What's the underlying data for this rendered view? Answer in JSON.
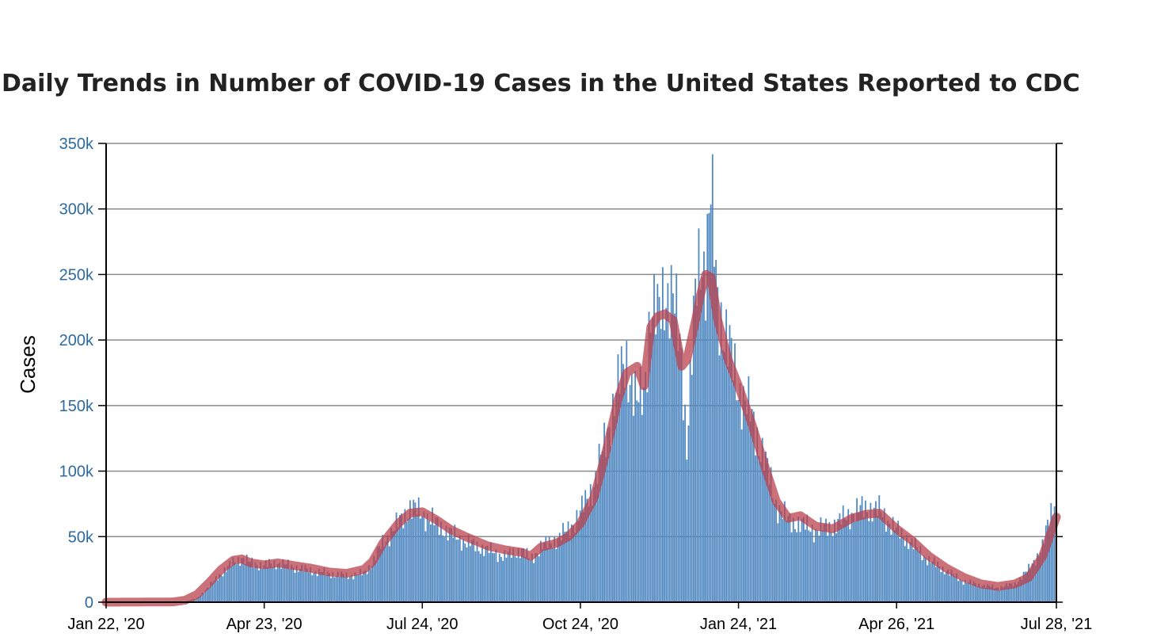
{
  "chart_data": {
    "type": "bar",
    "title": "Daily Trends in Number of COVID-19 Cases in the United States Reported to CDC",
    "xlabel": "",
    "ylabel": "Cases",
    "ylim": [
      0,
      350000
    ],
    "grid": true,
    "x_range": [
      "2020-01-22",
      "2021-07-28"
    ],
    "y_ticks": [
      {
        "value": 0,
        "label": "0"
      },
      {
        "value": 50000,
        "label": "50k"
      },
      {
        "value": 100000,
        "label": "100k"
      },
      {
        "value": 150000,
        "label": "150k"
      },
      {
        "value": 200000,
        "label": "200k"
      },
      {
        "value": 250000,
        "label": "250k"
      },
      {
        "value": 300000,
        "label": "300k"
      },
      {
        "value": 350000,
        "label": "350k"
      }
    ],
    "x_ticks": [
      {
        "date": "2020-01-22",
        "label": "Jan 22, '20"
      },
      {
        "date": "2020-04-23",
        "label": "Apr 23, '20"
      },
      {
        "date": "2020-07-24",
        "label": "Jul 24, '20"
      },
      {
        "date": "2020-10-24",
        "label": "Oct 24, '20"
      },
      {
        "date": "2021-01-24",
        "label": "Jan 24, '21"
      },
      {
        "date": "2021-04-26",
        "label": "Apr 26, '21"
      },
      {
        "date": "2021-07-28",
        "label": "Jul 28, '21"
      }
    ],
    "series": [
      {
        "type": "bar",
        "color": "#4f88c0",
        "points": [
          [
            "2020-01-22",
            0
          ],
          [
            "2020-03-01",
            100
          ],
          [
            "2020-03-08",
            500
          ],
          [
            "2020-03-15",
            3000
          ],
          [
            "2020-03-22",
            12000
          ],
          [
            "2020-03-29",
            22000
          ],
          [
            "2020-04-05",
            30000
          ],
          [
            "2020-04-10",
            34000
          ],
          [
            "2020-04-15",
            30000
          ],
          [
            "2020-04-23",
            28000
          ],
          [
            "2020-05-01",
            30000
          ],
          [
            "2020-05-10",
            27000
          ],
          [
            "2020-05-20",
            24000
          ],
          [
            "2020-05-31",
            22000
          ],
          [
            "2020-06-10",
            20000
          ],
          [
            "2020-06-20",
            22000
          ],
          [
            "2020-06-25",
            30000
          ],
          [
            "2020-07-01",
            45000
          ],
          [
            "2020-07-10",
            60000
          ],
          [
            "2020-07-17",
            72000
          ],
          [
            "2020-07-24",
            68000
          ],
          [
            "2020-08-01",
            60000
          ],
          [
            "2020-08-10",
            52000
          ],
          [
            "2020-08-20",
            45000
          ],
          [
            "2020-08-31",
            40000
          ],
          [
            "2020-09-10",
            35000
          ],
          [
            "2020-09-20",
            40000
          ],
          [
            "2020-09-25",
            32000
          ],
          [
            "2020-10-01",
            42000
          ],
          [
            "2020-10-10",
            48000
          ],
          [
            "2020-10-17",
            55000
          ],
          [
            "2020-10-24",
            68000
          ],
          [
            "2020-11-01",
            90000
          ],
          [
            "2020-11-08",
            125000
          ],
          [
            "2020-11-15",
            165000
          ],
          [
            "2020-11-20",
            185000
          ],
          [
            "2020-11-26",
            150000
          ],
          [
            "2020-11-30",
            160000
          ],
          [
            "2020-12-04",
            225000
          ],
          [
            "2020-12-08",
            215000
          ],
          [
            "2020-12-12",
            240000
          ],
          [
            "2020-12-17",
            230000
          ],
          [
            "2020-12-22",
            190000
          ],
          [
            "2020-12-25",
            120000
          ],
          [
            "2020-12-30",
            230000
          ],
          [
            "2021-01-02",
            270000
          ],
          [
            "2021-01-05",
            255000
          ],
          [
            "2021-01-08",
            310000
          ],
          [
            "2021-01-12",
            230000
          ],
          [
            "2021-01-18",
            195000
          ],
          [
            "2021-01-24",
            165000
          ],
          [
            "2021-02-01",
            140000
          ],
          [
            "2021-02-08",
            110000
          ],
          [
            "2021-02-15",
            75000
          ],
          [
            "2021-02-22",
            62000
          ],
          [
            "2021-03-01",
            60000
          ],
          [
            "2021-03-10",
            55000
          ],
          [
            "2021-03-20",
            58000
          ],
          [
            "2021-03-31",
            68000
          ],
          [
            "2021-04-08",
            72000
          ],
          [
            "2021-04-16",
            70000
          ],
          [
            "2021-04-26",
            55000
          ],
          [
            "2021-05-05",
            45000
          ],
          [
            "2021-05-15",
            32000
          ],
          [
            "2021-05-25",
            24000
          ],
          [
            "2021-06-04",
            16000
          ],
          [
            "2021-06-14",
            13000
          ],
          [
            "2021-06-24",
            11000
          ],
          [
            "2021-07-04",
            14000
          ],
          [
            "2021-07-12",
            25000
          ],
          [
            "2021-07-20",
            42000
          ],
          [
            "2021-07-28",
            85000
          ]
        ]
      },
      {
        "type": "line",
        "color": "#b8424d",
        "points": [
          [
            "2020-01-22",
            0
          ],
          [
            "2020-03-01",
            200
          ],
          [
            "2020-03-08",
            1500
          ],
          [
            "2020-03-15",
            6000
          ],
          [
            "2020-03-22",
            15000
          ],
          [
            "2020-03-29",
            25000
          ],
          [
            "2020-04-05",
            32000
          ],
          [
            "2020-04-10",
            33000
          ],
          [
            "2020-04-15",
            30000
          ],
          [
            "2020-04-23",
            28500
          ],
          [
            "2020-05-01",
            30000
          ],
          [
            "2020-05-10",
            28000
          ],
          [
            "2020-05-20",
            26000
          ],
          [
            "2020-05-31",
            23000
          ],
          [
            "2020-06-10",
            22000
          ],
          [
            "2020-06-20",
            25000
          ],
          [
            "2020-06-25",
            31000
          ],
          [
            "2020-07-01",
            45000
          ],
          [
            "2020-07-10",
            60000
          ],
          [
            "2020-07-17",
            68000
          ],
          [
            "2020-07-24",
            69000
          ],
          [
            "2020-08-01",
            63000
          ],
          [
            "2020-08-10",
            55000
          ],
          [
            "2020-08-20",
            49000
          ],
          [
            "2020-08-31",
            43000
          ],
          [
            "2020-09-10",
            40000
          ],
          [
            "2020-09-20",
            38000
          ],
          [
            "2020-09-25",
            35000
          ],
          [
            "2020-10-01",
            42000
          ],
          [
            "2020-10-10",
            45000
          ],
          [
            "2020-10-17",
            50000
          ],
          [
            "2020-10-24",
            60000
          ],
          [
            "2020-11-01",
            80000
          ],
          [
            "2020-11-08",
            115000
          ],
          [
            "2020-11-15",
            155000
          ],
          [
            "2020-11-20",
            175000
          ],
          [
            "2020-11-26",
            180000
          ],
          [
            "2020-11-30",
            165000
          ],
          [
            "2020-12-04",
            210000
          ],
          [
            "2020-12-08",
            218000
          ],
          [
            "2020-12-12",
            220000
          ],
          [
            "2020-12-17",
            215000
          ],
          [
            "2020-12-22",
            180000
          ],
          [
            "2020-12-25",
            185000
          ],
          [
            "2020-12-30",
            215000
          ],
          [
            "2021-01-02",
            235000
          ],
          [
            "2021-01-05",
            250000
          ],
          [
            "2021-01-08",
            248000
          ],
          [
            "2021-01-12",
            215000
          ],
          [
            "2021-01-18",
            185000
          ],
          [
            "2021-01-24",
            165000
          ],
          [
            "2021-02-01",
            135000
          ],
          [
            "2021-02-08",
            105000
          ],
          [
            "2021-02-15",
            77000
          ],
          [
            "2021-02-22",
            64000
          ],
          [
            "2021-03-01",
            66000
          ],
          [
            "2021-03-10",
            58000
          ],
          [
            "2021-03-20",
            56000
          ],
          [
            "2021-03-31",
            64000
          ],
          [
            "2021-04-08",
            67000
          ],
          [
            "2021-04-16",
            68000
          ],
          [
            "2021-04-26",
            56000
          ],
          [
            "2021-05-05",
            47000
          ],
          [
            "2021-05-15",
            35000
          ],
          [
            "2021-05-25",
            26000
          ],
          [
            "2021-06-04",
            19000
          ],
          [
            "2021-06-14",
            14000
          ],
          [
            "2021-06-24",
            12000
          ],
          [
            "2021-07-04",
            14000
          ],
          [
            "2021-07-12",
            19000
          ],
          [
            "2021-07-20",
            35000
          ],
          [
            "2021-07-28",
            65000
          ]
        ]
      }
    ]
  }
}
